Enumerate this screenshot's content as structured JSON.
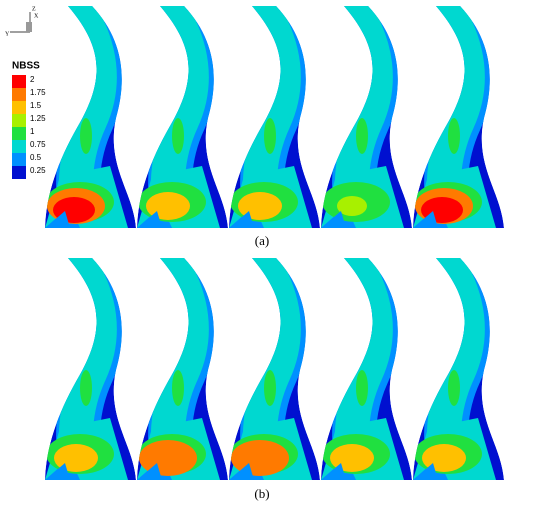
{
  "axis_triad": {
    "labels": [
      "Z",
      "X",
      "Y"
    ]
  },
  "legend": {
    "title": "NBSS",
    "levels": [
      {
        "label": "2",
        "color": "#ff0000"
      },
      {
        "label": "1.75",
        "color": "#ff7a00"
      },
      {
        "label": "1.5",
        "color": "#ffc000"
      },
      {
        "label": "1.25",
        "color": "#a8f000"
      },
      {
        "label": "1",
        "color": "#20e040"
      },
      {
        "label": "0.75",
        "color": "#00d8d0"
      },
      {
        "label": "0.5",
        "color": "#0090ff"
      },
      {
        "label": "0.25",
        "color": "#0010d0"
      }
    ]
  },
  "panels": [
    {
      "label": "(a)"
    },
    {
      "label": "(b)"
    }
  ]
}
